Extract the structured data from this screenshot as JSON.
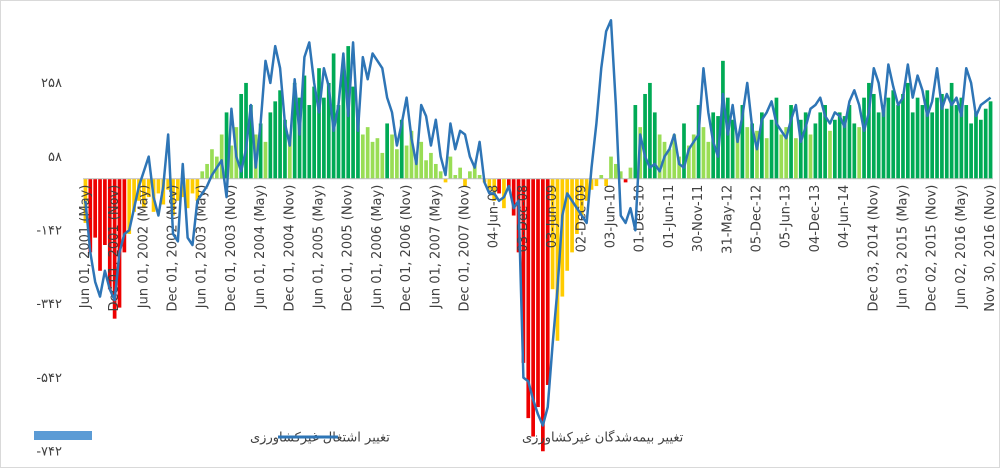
{
  "chart_data": {
    "type": "bar_line",
    "categories": [
      "Jun 01, 2001 (May)",
      null,
      null,
      null,
      null,
      null,
      "Dec 01, 2001 (Nov)",
      null,
      null,
      null,
      null,
      null,
      "Jun 01, 2002 (May)",
      null,
      null,
      null,
      null,
      null,
      "Dec 01, 2002 (Nov)",
      null,
      null,
      null,
      null,
      null,
      "Jun 01, 2003 (May)",
      null,
      null,
      null,
      null,
      null,
      "Dec 01, 2003 (Nov)",
      null,
      null,
      null,
      null,
      null,
      "Jun 01, 2004 (May)",
      null,
      null,
      null,
      null,
      null,
      "Dec 01, 2004 (Nov)",
      null,
      null,
      null,
      null,
      null,
      "Jun 01, 2005 (May)",
      null,
      null,
      null,
      null,
      null,
      "Dec 01, 2005 (Nov)",
      null,
      null,
      null,
      null,
      null,
      "Jun 01, 2006 (May)",
      null,
      null,
      null,
      null,
      null,
      "Dec 01, 2006 (Nov)",
      null,
      null,
      null,
      null,
      null,
      "Jun 01, 2007 (May)",
      null,
      null,
      null,
      null,
      null,
      "Dec 01, 2007 (Nov)",
      null,
      null,
      null,
      null,
      null,
      "04-Jun-08",
      null,
      null,
      null,
      null,
      null,
      "03-Dec-08",
      null,
      null,
      null,
      null,
      null,
      "03-Jun-09",
      null,
      null,
      null,
      null,
      null,
      "02-Dec-09",
      null,
      null,
      null,
      null,
      null,
      "03-Jun-10",
      null,
      null,
      null,
      null,
      null,
      "01-Dec-10",
      null,
      null,
      null,
      null,
      null,
      "01-Jun-11",
      null,
      null,
      null,
      null,
      null,
      "30-Nov-11",
      null,
      null,
      null,
      null,
      null,
      "31-May-12",
      null,
      null,
      null,
      null,
      null,
      "05-Dec-12",
      null,
      null,
      null,
      null,
      null,
      "05-Jun-13",
      null,
      null,
      null,
      null,
      null,
      "04-Dec-13",
      null,
      null,
      null,
      null,
      null,
      "04-Jun-14",
      null,
      null,
      null,
      null,
      null,
      "Dec 03, 2014 (Nov)",
      null,
      null,
      null,
      null,
      null,
      "Jun 03, 2015 (May)",
      null,
      null,
      null,
      null,
      null,
      "Dec 02, 2015 (Nov)",
      null,
      null,
      null,
      null,
      null,
      "Jun 02, 2016 (May)",
      null,
      null,
      null,
      null,
      null,
      "Nov 30, 2016 (Nov)"
    ],
    "series": [
      {
        "name": "تغییر اشتغال غیرکشاورزی",
        "type": "bar",
        "color": "#5b9bd5",
        "values": [
          -120,
          -200,
          -160,
          -250,
          -180,
          -300,
          -380,
          -350,
          -200,
          -150,
          -90,
          -60,
          -80,
          -50,
          -90,
          -40,
          -70,
          -30,
          -100,
          -60,
          -50,
          -80,
          -40,
          -60,
          20,
          40,
          80,
          60,
          120,
          180,
          90,
          140,
          230,
          260,
          200,
          120,
          150,
          100,
          180,
          210,
          240,
          160,
          120,
          260,
          220,
          280,
          200,
          250,
          300,
          220,
          260,
          340,
          200,
          310,
          360,
          250,
          180,
          120,
          140,
          100,
          110,
          70,
          150,
          120,
          80,
          160,
          90,
          130,
          60,
          100,
          50,
          70,
          40,
          20,
          -10,
          60,
          10,
          30,
          -20,
          20,
          40,
          10,
          -10,
          -30,
          -60,
          -40,
          -80,
          -30,
          -100,
          -200,
          -500,
          -650,
          -700,
          -620,
          -740,
          -560,
          -300,
          -440,
          -320,
          -250,
          -200,
          -150,
          -100,
          -60,
          -30,
          -20,
          10,
          -20,
          60,
          40,
          20,
          -10,
          30,
          200,
          140,
          230,
          260,
          180,
          120,
          100,
          80,
          120,
          60,
          150,
          90,
          120,
          200,
          140,
          100,
          180,
          170,
          320,
          220,
          160,
          120,
          200,
          140,
          150,
          130,
          180,
          110,
          160,
          220,
          120,
          140,
          200,
          110,
          160,
          180,
          120,
          150,
          180,
          200,
          130,
          160,
          180,
          170,
          200,
          150,
          140,
          220,
          260,
          230,
          180,
          200,
          220,
          240,
          200,
          230,
          260,
          180,
          220,
          200,
          240,
          180,
          220,
          230,
          190,
          260,
          200,
          220,
          200,
          150,
          180,
          160,
          190,
          210
        ],
        "colors": [
          "#fc0",
          "#e00",
          "#e00",
          "#e00",
          "#e00",
          "#e00",
          "#e00",
          "#e00",
          "#e00",
          "#fc0",
          "#fc0",
          "#fc0",
          "#fc0",
          "#fc0",
          "#fc0",
          "#fc0",
          "#fc0",
          "#fc0",
          "#fc0",
          "#fc0",
          "#fc0",
          "#fc0",
          "#fc0",
          "#fc0",
          "#9d5",
          "#9d5",
          "#9d5",
          "#9d5",
          "#9d5",
          "#0a5",
          "#9d5",
          "#9d5",
          "#0a5",
          "#0a5",
          "#0a5",
          "#9d5",
          "#0a5",
          "#9d5",
          "#0a5",
          "#0a5",
          "#0a5",
          "#0a5",
          "#9d5",
          "#0a5",
          "#0a5",
          "#0a5",
          "#0a5",
          "#0a5",
          "#0a5",
          "#0a5",
          "#0a5",
          "#0a5",
          "#0a5",
          "#0a5",
          "#0a5",
          "#0a5",
          "#0a5",
          "#9d5",
          "#9d5",
          "#9d5",
          "#9d5",
          "#9d5",
          "#0a5",
          "#9d5",
          "#9d5",
          "#0a5",
          "#9d5",
          "#9d5",
          "#9d5",
          "#9d5",
          "#9d5",
          "#9d5",
          "#9d5",
          "#9d5",
          "#fc0",
          "#9d5",
          "#9d5",
          "#9d5",
          "#fc0",
          "#9d5",
          "#9d5",
          "#9d5",
          "#fc0",
          "#fc0",
          "#fc0",
          "#e00",
          "#fc0",
          "#e00",
          "#e00",
          "#e00",
          "#e00",
          "#e00",
          "#e00",
          "#e00",
          "#e00",
          "#e00",
          "#fc0",
          "#fc0",
          "#fc0",
          "#fc0",
          "#fc0",
          "#fc0",
          "#fc0",
          "#fc0",
          "#fc0",
          "#fc0",
          "#9d5",
          "#fc0",
          "#9d5",
          "#9d5",
          "#9d5",
          "#e00",
          "#9d5",
          "#0a5",
          "#9d5",
          "#0a5",
          "#0a5",
          "#0a5",
          "#9d5",
          "#9d5",
          "#9d5",
          "#9d5",
          "#9d5",
          "#0a5",
          "#9d5",
          "#9d5",
          "#0a5",
          "#9d5",
          "#9d5",
          "#0a5",
          "#0a5",
          "#0a5",
          "#0a5",
          "#0a5",
          "#9d5",
          "#0a5",
          "#9d5",
          "#0a5",
          "#9d5",
          "#0a5",
          "#9d5",
          "#0a5",
          "#0a5",
          "#9d5",
          "#9d5",
          "#0a5",
          "#9d5",
          "#0a5",
          "#0a5",
          "#9d5",
          "#0a5",
          "#0a5",
          "#0a5",
          "#9d5",
          "#0a5",
          "#0a5",
          "#0a5",
          "#0a5",
          "#0a5",
          "#9d5",
          "#0a5",
          "#0a5",
          "#0a5",
          "#0a5",
          "#0a5",
          "#0a5",
          "#0a5",
          "#0a5",
          "#0a5",
          "#0a5",
          "#0a5",
          "#0a5",
          "#0a5",
          "#0a5",
          "#0a5",
          "#0a5",
          "#0a5",
          "#0a5",
          "#0a5",
          "#0a5",
          "#0a5",
          "#0a5",
          "#0a5",
          "#0a5",
          "#0a5",
          "#0a5",
          "#0a5"
        ]
      },
      {
        "name": "تغییر بیمه‌شدگان غیرکشاورزی",
        "type": "line",
        "color": "#2e75b6",
        "values": [
          -60,
          -200,
          -280,
          -320,
          -250,
          -300,
          -330,
          -200,
          -150,
          -140,
          -80,
          -20,
          20,
          60,
          -50,
          -100,
          -20,
          120,
          -150,
          -170,
          40,
          -160,
          -180,
          -60,
          -40,
          -20,
          10,
          30,
          50,
          -50,
          190,
          60,
          20,
          80,
          200,
          30,
          150,
          320,
          260,
          360,
          300,
          150,
          90,
          270,
          120,
          330,
          370,
          260,
          180,
          300,
          250,
          130,
          200,
          340,
          170,
          370,
          130,
          330,
          270,
          340,
          320,
          300,
          220,
          180,
          90,
          150,
          220,
          110,
          40,
          200,
          170,
          90,
          160,
          60,
          10,
          150,
          80,
          130,
          120,
          60,
          30,
          100,
          -10,
          -40,
          -40,
          -60,
          -50,
          -20,
          -80,
          -60,
          -540,
          -550,
          -600,
          -640,
          -670,
          -620,
          -450,
          -300,
          -100,
          -40,
          -60,
          -80,
          -100,
          -120,
          30,
          150,
          300,
          400,
          430,
          200,
          -100,
          -120,
          -80,
          -140,
          120,
          60,
          30,
          40,
          20,
          60,
          80,
          120,
          40,
          30,
          80,
          100,
          120,
          300,
          180,
          100,
          60,
          230,
          120,
          200,
          100,
          170,
          260,
          140,
          80,
          160,
          180,
          210,
          150,
          130,
          110,
          160,
          200,
          100,
          140,
          190,
          200,
          220,
          170,
          150,
          180,
          170,
          140,
          210,
          240,
          200,
          130,
          180,
          300,
          260,
          170,
          310,
          250,
          200,
          220,
          310,
          220,
          280,
          240,
          170,
          210,
          300,
          190,
          230,
          200,
          220,
          170,
          300,
          260,
          170,
          200,
          210,
          220
        ]
      }
    ],
    "ylim": [
      -742,
      458
    ],
    "yticks": [
      {
        "value": -742,
        "label": "-۷۴۲"
      },
      {
        "value": -542,
        "label": "-۵۴۲"
      },
      {
        "value": -342,
        "label": "-۳۴۲"
      },
      {
        "value": -142,
        "label": "-۱۴۲"
      },
      {
        "value": 58,
        "label": "۵۸"
      },
      {
        "value": 258,
        "label": "۲۵۸"
      }
    ],
    "legend": "bottom-left"
  }
}
